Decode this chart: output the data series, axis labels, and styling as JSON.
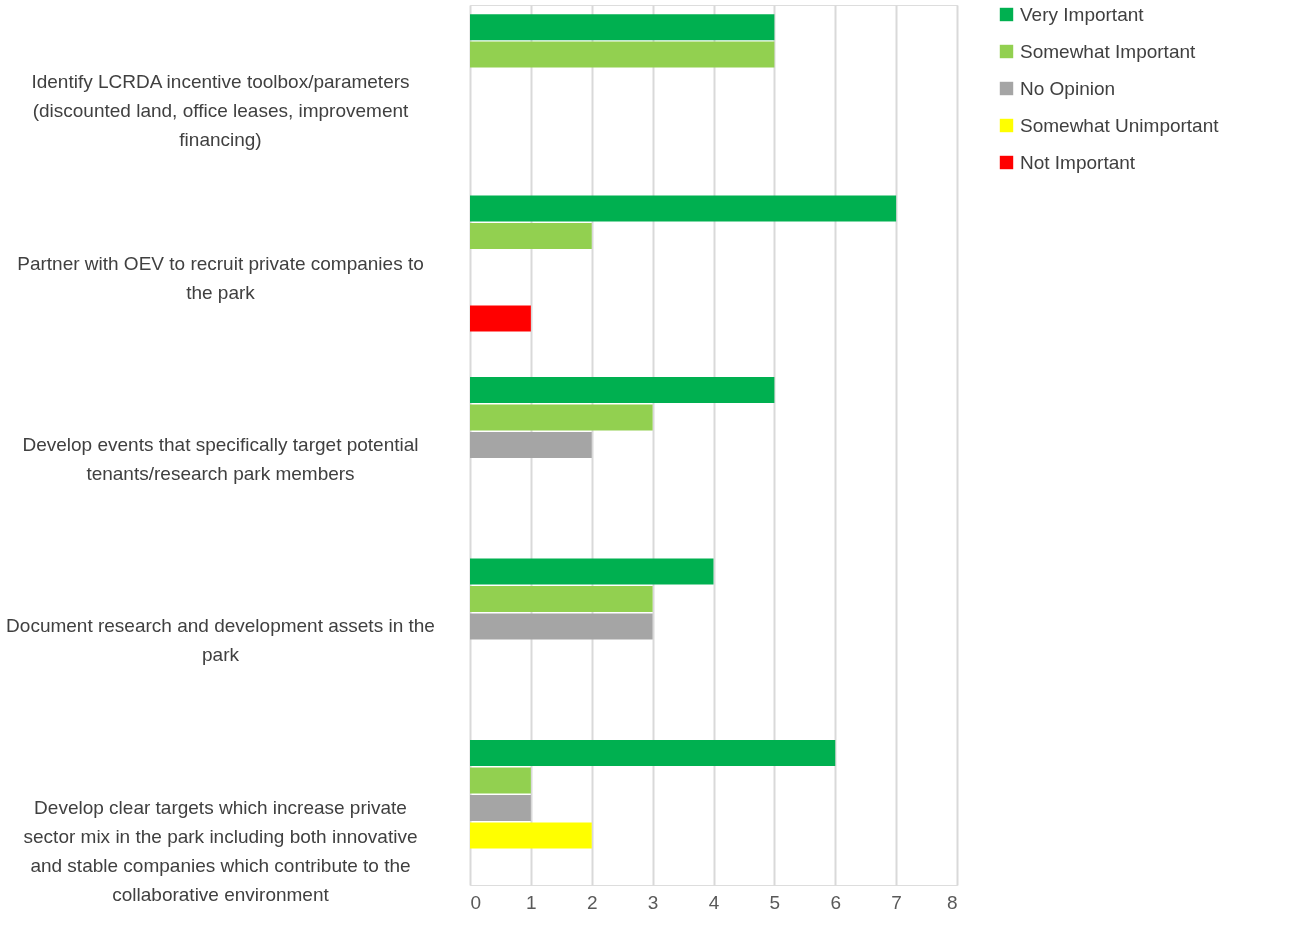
{
  "chart_data": {
    "type": "bar",
    "orientation": "horizontal",
    "categories": [
      "Identify LCRDA incentive toolbox/parameters (discounted land, office leases, improvement financing)",
      "Partner with OEV to recruit private companies to the park",
      "Develop events that specifically target potential tenants/research park members",
      "Document research and development assets in the park",
      "Develop clear targets which increase private sector mix in the park including both innovative and stable companies which contribute to the collaborative environment"
    ],
    "series": [
      {
        "name": "Very Important",
        "color": "#00b050",
        "values": [
          5,
          7,
          5,
          4,
          6
        ]
      },
      {
        "name": "Somewhat Important",
        "color": "#92d050",
        "values": [
          5,
          2,
          3,
          3,
          1
        ]
      },
      {
        "name": "No Opinion",
        "color": "#a5a5a5",
        "values": [
          null,
          null,
          2,
          3,
          1
        ]
      },
      {
        "name": "Somewhat Unimportant",
        "color": "#ffff00",
        "values": [
          null,
          null,
          null,
          null,
          2
        ]
      },
      {
        "name": "Not Important",
        "color": "#ff0000",
        "values": [
          null,
          1,
          null,
          null,
          null
        ]
      }
    ],
    "xlim": [
      0,
      8
    ],
    "xticks": [
      0,
      1,
      2,
      3,
      4,
      5,
      6,
      7,
      8
    ],
    "grid": "x",
    "legend": "right"
  }
}
